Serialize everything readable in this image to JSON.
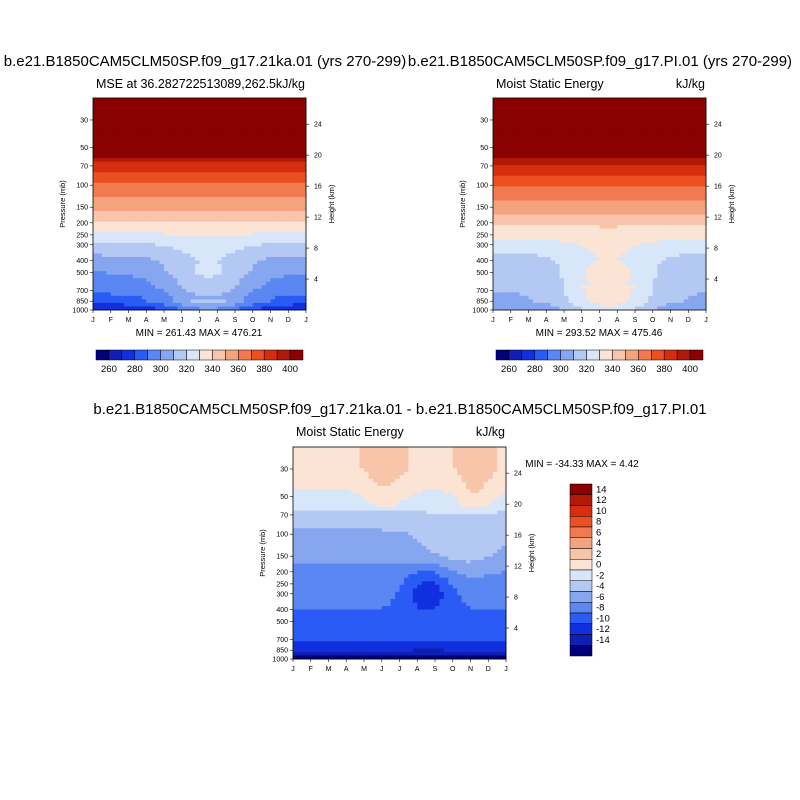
{
  "chart_data": [
    {
      "type": "heatmap",
      "title": "b.e21.B1850CAM5CLM50SP.f09_g17.21ka.01 (yrs 270-299)",
      "left_string": "MSE at 36.282722513089,262.5",
      "right_string": "kJ/kg",
      "xlabel": "",
      "ylabel": "Pressure (mb)",
      "right_axis_label": "Height (km)",
      "x_ticks": [
        "J",
        "F",
        "M",
        "A",
        "M",
        "J",
        "J",
        "A",
        "S",
        "O",
        "N",
        "D",
        "J"
      ],
      "y_ticks": [
        30,
        50,
        70,
        100,
        150,
        200,
        250,
        300,
        400,
        500,
        700,
        850,
        1000
      ],
      "height_ticks": [
        24,
        20,
        16,
        12,
        8,
        4
      ],
      "stats": "MIN = 261.43  MAX = 476.21",
      "min": 261.43,
      "max": 476.21,
      "colorbar_levels": [
        250,
        260,
        270,
        280,
        290,
        300,
        310,
        320,
        330,
        340,
        350,
        360,
        370,
        380,
        390,
        400
      ],
      "colorbar_labels": [
        "260",
        "280",
        "300",
        "320",
        "340",
        "360",
        "380",
        "400"
      ],
      "colors": [
        "#00007a",
        "#0e1fb2",
        "#1030e0",
        "#2a5bf5",
        "#5a87f2",
        "#87a6f0",
        "#b4c8f4",
        "#d8e6fa",
        "#fbe4d4",
        "#f8c4aa",
        "#f5a27e",
        "#f27a50",
        "#ec4f22",
        "#d62e0e",
        "#b01a06",
        "#8b0000"
      ],
      "profiles": [
        {
          "p": 30,
          "v": 470
        },
        {
          "p": 50,
          "v": 420
        },
        {
          "p": 70,
          "v": 385
        },
        {
          "p": 100,
          "v": 368
        },
        {
          "p": 150,
          "v": 352
        },
        {
          "p": 200,
          "v": 338
        },
        {
          "p": 250,
          "v": 328
        },
        {
          "p": 300,
          "v": 318
        },
        {
          "p": 400,
          "v": 306
        },
        {
          "p": 500,
          "v": 300
        },
        {
          "p": 700,
          "v": 292
        },
        {
          "p": 850,
          "v": 285
        },
        {
          "p": 1000,
          "v": 270
        }
      ],
      "summer_warming": 22,
      "hole_months": [
        5.5,
        7.5
      ]
    },
    {
      "type": "heatmap",
      "title": "b.e21.B1850CAM5CLM50SP.f09_g17.PI.01 (yrs 270-299)",
      "left_string": "Moist Static Energy",
      "right_string": "kJ/kg",
      "xlabel": "",
      "ylabel": "Pressure (mb)",
      "right_axis_label": "Height (km)",
      "x_ticks": [
        "J",
        "F",
        "M",
        "A",
        "M",
        "J",
        "J",
        "A",
        "S",
        "O",
        "N",
        "D",
        "J"
      ],
      "y_ticks": [
        30,
        50,
        70,
        100,
        150,
        200,
        250,
        300,
        400,
        500,
        700,
        850,
        1000
      ],
      "height_ticks": [
        24,
        20,
        16,
        12,
        8,
        4
      ],
      "stats": "MIN = 293.52  MAX = 475.46",
      "min": 293.52,
      "max": 475.46,
      "colorbar_levels": [
        250,
        260,
        270,
        280,
        290,
        300,
        310,
        320,
        330,
        340,
        350,
        360,
        370,
        380,
        390,
        400
      ],
      "colorbar_labels": [
        "260",
        "280",
        "300",
        "320",
        "340",
        "360",
        "380",
        "400"
      ],
      "colors": [
        "#00007a",
        "#0e1fb2",
        "#1030e0",
        "#2a5bf5",
        "#5a87f2",
        "#87a6f0",
        "#b4c8f4",
        "#d8e6fa",
        "#fbe4d4",
        "#f8c4aa",
        "#f5a27e",
        "#f27a50",
        "#ec4f22",
        "#d62e0e",
        "#b01a06",
        "#8b0000"
      ],
      "profiles": [
        {
          "p": 30,
          "v": 470
        },
        {
          "p": 50,
          "v": 420
        },
        {
          "p": 70,
          "v": 388
        },
        {
          "p": 100,
          "v": 372
        },
        {
          "p": 150,
          "v": 356
        },
        {
          "p": 200,
          "v": 342
        },
        {
          "p": 250,
          "v": 333
        },
        {
          "p": 300,
          "v": 325
        },
        {
          "p": 400,
          "v": 316
        },
        {
          "p": 500,
          "v": 313
        },
        {
          "p": 700,
          "v": 310
        },
        {
          "p": 850,
          "v": 308
        },
        {
          "p": 1000,
          "v": 300
        }
      ],
      "summer_warming": 22,
      "hole_months": [
        5.5,
        7.5
      ]
    },
    {
      "type": "heatmap",
      "title": "b.e21.B1850CAM5CLM50SP.f09_g17.21ka.01 - b.e21.B1850CAM5CLM50SP.f09_g17.PI.01",
      "left_string": "Moist Static Energy",
      "right_string": "kJ/kg",
      "xlabel": "",
      "ylabel": "Pressure (mb)",
      "right_axis_label": "Height (km)",
      "x_ticks": [
        "J",
        "F",
        "M",
        "A",
        "M",
        "J",
        "J",
        "A",
        "S",
        "O",
        "N",
        "D",
        "J"
      ],
      "y_ticks": [
        30,
        50,
        70,
        100,
        150,
        200,
        250,
        300,
        400,
        500,
        700,
        850,
        1000
      ],
      "height_ticks": [
        24,
        20,
        16,
        12,
        8,
        4
      ],
      "stats": "MIN = -34.33 MAX =   4.42",
      "min": -34.33,
      "max": 4.42,
      "colorbar_levels": [
        -16,
        -14,
        -12,
        -10,
        -8,
        -6,
        -4,
        -2,
        0,
        2,
        4,
        6,
        8,
        10,
        12,
        14,
        16
      ],
      "colorbar_labels": [
        "14",
        "12",
        "10",
        "8",
        "6",
        "4",
        "2",
        "0",
        "-2",
        "-4",
        "-6",
        "-8",
        "-10",
        "-12",
        "-14"
      ],
      "colors": [
        "#00007a",
        "#0e1fb2",
        "#1030e0",
        "#2a5bf5",
        "#5a87f2",
        "#87a6f0",
        "#b4c8f4",
        "#d8e6fa",
        "#fbe4d4",
        "#f8c4aa",
        "#f5a27e",
        "#f27a50",
        "#ec4f22",
        "#d62e0e",
        "#b01a06",
        "#8b0000"
      ],
      "profiles": [
        {
          "p": 30,
          "v": 1.5
        },
        {
          "p": 50,
          "v": -0.5
        },
        {
          "p": 70,
          "v": -2.5
        },
        {
          "p": 100,
          "v": -4.5
        },
        {
          "p": 150,
          "v": -5.5
        },
        {
          "p": 200,
          "v": -6.5
        },
        {
          "p": 250,
          "v": -7
        },
        {
          "p": 300,
          "v": -7.5
        },
        {
          "p": 400,
          "v": -8
        },
        {
          "p": 500,
          "v": -8.5
        },
        {
          "p": 700,
          "v": -9.5
        },
        {
          "p": 850,
          "v": -12
        },
        {
          "p": 1000,
          "v": -15
        }
      ],
      "summer_warming": 0,
      "hole_months": [
        6,
        8
      ]
    }
  ]
}
